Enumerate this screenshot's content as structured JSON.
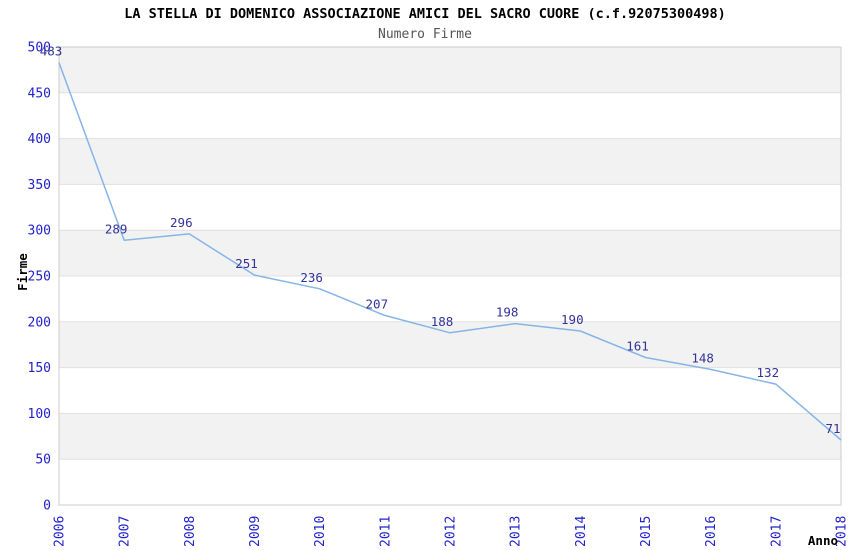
{
  "chart_data": {
    "type": "line",
    "title": "LA STELLA DI DOMENICO ASSOCIAZIONE AMICI DEL SACRO CUORE (c.f.92075300498)",
    "subtitle": "Numero Firme",
    "xlabel": "Anno",
    "ylabel": "Firme",
    "categories": [
      "2006",
      "2007",
      "2008",
      "2009",
      "2010",
      "2011",
      "2012",
      "2013",
      "2014",
      "2015",
      "2016",
      "2017",
      "2018"
    ],
    "series": [
      {
        "name": "Numero Firme",
        "values": [
          483,
          289,
          296,
          251,
          236,
          207,
          188,
          198,
          190,
          161,
          148,
          132,
          71
        ]
      }
    ],
    "ylim": [
      0,
      500
    ],
    "ytick_step": 50,
    "grid": true,
    "bands": "alternating horizontal stripes of 50 units, gray on odd bands (50-100, 150-200, 250-300, 350-400, 450-500)",
    "legend_position": "none",
    "point_labels_visible": true,
    "x_tick_rotation": -90,
    "colors": {
      "line": "#85b5e8",
      "tick_label": "#2222cc",
      "point_label": "#333399",
      "band_fill": "#f2f2f2",
      "gridline": "#e0e0e0",
      "plot_border": "#cccccc",
      "title": "#000000",
      "subtitle": "#555555",
      "axis_title": "#000000",
      "background": "#ffffff"
    }
  }
}
